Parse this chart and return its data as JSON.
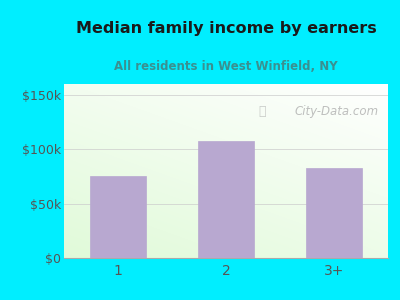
{
  "title": "Median family income by earners",
  "subtitle": "All residents in West Winfield, NY",
  "categories": [
    "1",
    "2",
    "3+"
  ],
  "values": [
    75000,
    108000,
    83000
  ],
  "bar_color": "#b8a8d0",
  "title_color": "#1a1a1a",
  "subtitle_color": "#3a9090",
  "outer_bg_color": "#00eeff",
  "yticks": [
    0,
    50000,
    100000,
    150000
  ],
  "ytick_labels": [
    "$0",
    "$50k",
    "$100k",
    "$150k"
  ],
  "ylim": [
    0,
    160000
  ],
  "watermark": "City-Data.com",
  "tick_color": "#555555",
  "grid_color": "#cccccc"
}
